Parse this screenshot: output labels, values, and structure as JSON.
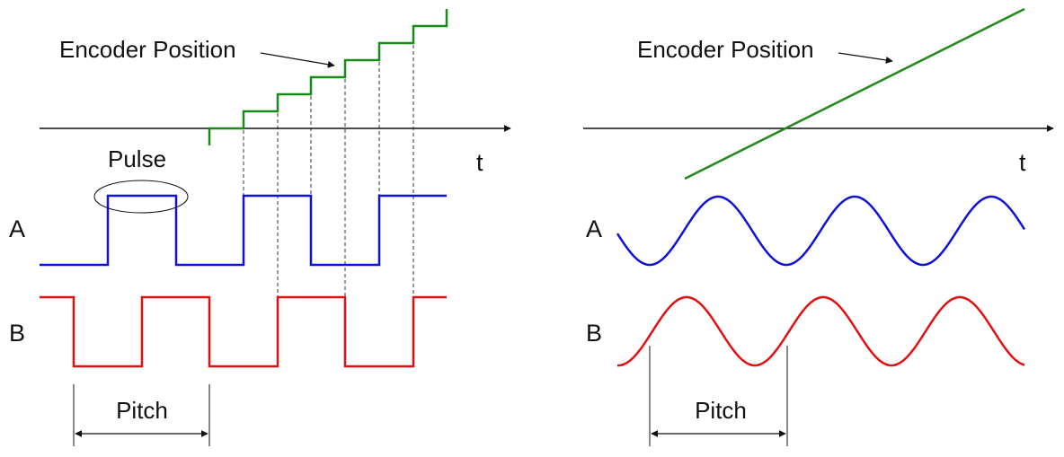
{
  "colors": {
    "encoder": "#1a8a1a",
    "signal_a": "#1010dd",
    "signal_b": "#e01010",
    "axis": "#111111",
    "guide": "#333333"
  },
  "left_panel": {
    "encoder_label": "Encoder Position",
    "time_label": "t",
    "pulse_label": "Pulse",
    "channel_a_label": "A",
    "channel_b_label": "B",
    "pitch_label": "Pitch",
    "waveform": "square"
  },
  "right_panel": {
    "encoder_label": "Encoder Position",
    "time_label": "t",
    "channel_a_label": "A",
    "channel_b_label": "B",
    "pitch_label": "Pitch",
    "waveform": "sine"
  }
}
